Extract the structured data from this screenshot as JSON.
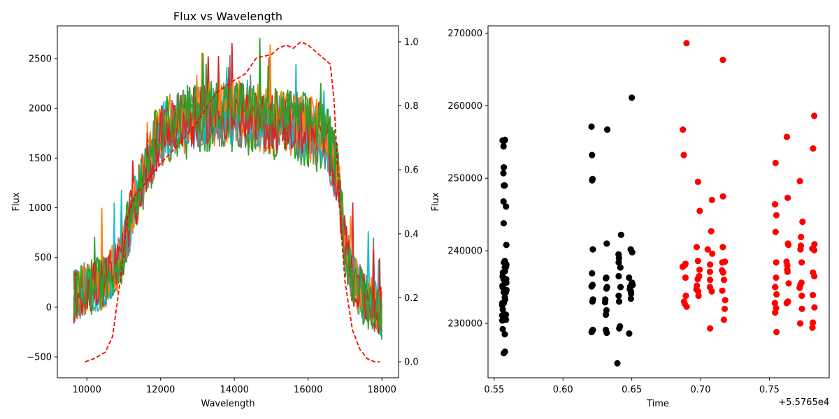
{
  "chart_data": [
    {
      "type": "line",
      "title": "Flux vs Wavelength",
      "xlabel": "Wavelength",
      "ylabel": "Flux",
      "xlim": [
        9200,
        18450
      ],
      "ylim": [
        -710,
        2830
      ],
      "y2lim": [
        -0.05,
        1.05
      ],
      "x_ticks": [
        10000,
        12000,
        14000,
        16000,
        18000
      ],
      "y_ticks": [
        -500,
        0,
        500,
        1000,
        1500,
        2000,
        2500
      ],
      "y2_ticks": [
        0.0,
        0.2,
        0.4,
        0.6,
        0.8,
        1.0
      ],
      "x_tick_labels": [
        "10000",
        "12000",
        "14000",
        "16000",
        "18000"
      ],
      "y_tick_labels": [
        "−500",
        "0",
        "500",
        "1000",
        "1500",
        "2000",
        "2500"
      ],
      "y2_tick_labels": [
        "0.0",
        "0.2",
        "0.4",
        "0.6",
        "0.8",
        "1.0"
      ],
      "grid": false,
      "series_colors": [
        "#17becf",
        "#7f7f7f",
        "#ff7f0e",
        "#d62728",
        "#2ca02c"
      ],
      "spectrum_envelope": {
        "x": [
          9650,
          10000,
          10500,
          10900,
          11200,
          11600,
          12000,
          12500,
          13000,
          13500,
          14000,
          14500,
          15000,
          15500,
          16000,
          16500,
          16800,
          17000,
          17200,
          17500,
          17800,
          18000
        ],
        "y": [
          100,
          200,
          250,
          450,
          900,
          1400,
          1750,
          1850,
          1900,
          1950,
          1950,
          1900,
          1850,
          1850,
          1800,
          1700,
          1300,
          600,
          300,
          100,
          0,
          -50
        ]
      },
      "filter_curve": {
        "name": "",
        "color": "#ff0000",
        "style": "dashed",
        "x": [
          9950,
          10200,
          10500,
          10700,
          10900,
          11100,
          11300,
          11600,
          12000,
          12500,
          13000,
          13500,
          14000,
          14300,
          14600,
          15000,
          15200,
          15400,
          15600,
          15800,
          16000,
          16200,
          16400,
          16600,
          16700,
          16800,
          16900,
          17000,
          17200,
          17400,
          17600,
          17800,
          17950
        ],
        "y": [
          0.0,
          0.01,
          0.03,
          0.08,
          0.25,
          0.45,
          0.52,
          0.56,
          0.62,
          0.68,
          0.75,
          0.84,
          0.88,
          0.9,
          0.95,
          0.96,
          0.98,
          0.99,
          0.98,
          1.0,
          0.99,
          0.97,
          0.95,
          0.93,
          0.82,
          0.6,
          0.4,
          0.25,
          0.1,
          0.04,
          0.01,
          0.0,
          0.0
        ]
      }
    },
    {
      "type": "scatter",
      "title": "",
      "xlabel": "Time",
      "ylabel": "Flux",
      "offset_label": "+5.5765e4",
      "xlim": [
        0.5455,
        0.7935
      ],
      "ylim": [
        222500,
        271000
      ],
      "x_ticks": [
        0.55,
        0.6,
        0.65,
        0.7,
        0.75
      ],
      "y_ticks": [
        230000,
        240000,
        250000,
        260000,
        270000
      ],
      "x_tick_labels": [
        "0.55",
        "0.60",
        "0.65",
        "0.70",
        "0.75"
      ],
      "y_tick_labels": [
        "230000",
        "240000",
        "250000",
        "260000",
        "270000"
      ],
      "grid": false,
      "series": [
        {
          "color": "#000000",
          "points": [
            [
              0.5561,
              255200
            ],
            [
              0.557,
              255100
            ],
            [
              0.5578,
              255300
            ],
            [
              0.5568,
              254400
            ],
            [
              0.557,
              251500
            ],
            [
              0.5567,
              250700
            ],
            [
              0.5571,
              249000
            ],
            [
              0.5576,
              249000
            ],
            [
              0.5568,
              246800
            ],
            [
              0.5586,
              246100
            ],
            [
              0.5569,
              243800
            ],
            [
              0.5588,
              240800
            ],
            [
              0.5571,
              238400
            ],
            [
              0.5577,
              238600
            ],
            [
              0.5579,
              238400
            ],
            [
              0.5577,
              237700
            ],
            [
              0.5578,
              237200
            ],
            [
              0.5586,
              237800
            ],
            [
              0.5588,
              238100
            ],
            [
              0.5563,
              237000
            ],
            [
              0.5561,
              236500
            ],
            [
              0.5568,
              236100
            ],
            [
              0.5576,
              235900
            ],
            [
              0.5587,
              236100
            ],
            [
              0.5588,
              235600
            ],
            [
              0.556,
              235200
            ],
            [
              0.5561,
              235000
            ],
            [
              0.5589,
              234600
            ],
            [
              0.557,
              234300
            ],
            [
              0.5585,
              234300
            ],
            [
              0.5577,
              233600
            ],
            [
              0.558,
              233300
            ],
            [
              0.5559,
              232800
            ],
            [
              0.5558,
              232500
            ],
            [
              0.557,
              232800
            ],
            [
              0.5562,
              231900
            ],
            [
              0.5558,
              231100
            ],
            [
              0.5585,
              231200
            ],
            [
              0.5559,
              230400
            ],
            [
              0.5561,
              230400
            ],
            [
              0.5586,
              230500
            ],
            [
              0.5562,
              229200
            ],
            [
              0.5577,
              228500
            ],
            [
              0.557,
              225900
            ],
            [
              0.5578,
              226100
            ],
            [
              0.6207,
              257100
            ],
            [
              0.6211,
              253200
            ],
            [
              0.6212,
              249700
            ],
            [
              0.6215,
              249900
            ],
            [
              0.6217,
              240200
            ],
            [
              0.6211,
              236900
            ],
            [
              0.6208,
              235100
            ],
            [
              0.6215,
              235300
            ],
            [
              0.6218,
              233300
            ],
            [
              0.6214,
              233000
            ],
            [
              0.6208,
              228800
            ],
            [
              0.6213,
              229000
            ],
            [
              0.6217,
              229100
            ],
            [
              0.6322,
              256700
            ],
            [
              0.6318,
              241000
            ],
            [
              0.6312,
              236200
            ],
            [
              0.6315,
              236300
            ],
            [
              0.6316,
              234800
            ],
            [
              0.632,
              235000
            ],
            [
              0.6307,
              233300
            ],
            [
              0.6306,
              232900
            ],
            [
              0.6316,
              231800
            ],
            [
              0.6312,
              231200
            ],
            [
              0.6312,
              229100
            ],
            [
              0.6318,
              228700
            ],
            [
              0.6422,
              242200
            ],
            [
              0.6404,
              239500
            ],
            [
              0.6407,
              239000
            ],
            [
              0.6405,
              238400
            ],
            [
              0.6417,
              237700
            ],
            [
              0.6405,
              236500
            ],
            [
              0.6418,
              235000
            ],
            [
              0.6405,
              233800
            ],
            [
              0.6408,
              233000
            ],
            [
              0.6414,
              229600
            ],
            [
              0.6409,
              229300
            ],
            [
              0.6395,
              224500
            ],
            [
              0.65,
              261100
            ],
            [
              0.6492,
              240200
            ],
            [
              0.6503,
              239800
            ],
            [
              0.648,
              236300
            ],
            [
              0.6502,
              235600
            ],
            [
              0.6506,
              235300
            ],
            [
              0.6489,
              235100
            ],
            [
              0.6486,
              234700
            ],
            [
              0.6494,
              234400
            ],
            [
              0.6495,
              234100
            ],
            [
              0.6493,
              233400
            ],
            [
              0.6481,
              228600
            ]
          ]
        },
        {
          "color": "#ff0000",
          "points": [
            [
              0.6898,
              268600
            ],
            [
              0.6872,
              256700
            ],
            [
              0.6878,
              253200
            ],
            [
              0.689,
              238200
            ],
            [
              0.6884,
              238000
            ],
            [
              0.687,
              237800
            ],
            [
              0.689,
              236300
            ],
            [
              0.6893,
              233800
            ],
            [
              0.688,
              233000
            ],
            [
              0.6885,
              232700
            ],
            [
              0.6899,
              232300
            ],
            [
              0.6981,
              249500
            ],
            [
              0.6994,
              245500
            ],
            [
              0.6972,
              240500
            ],
            [
              0.6981,
              238600
            ],
            [
              0.6993,
              237400
            ],
            [
              0.6989,
              236500
            ],
            [
              0.6979,
              236100
            ],
            [
              0.6973,
              235200
            ],
            [
              0.697,
              234700
            ],
            [
              0.6982,
              234400
            ],
            [
              0.6985,
              233800
            ],
            [
              0.7083,
              247000
            ],
            [
              0.7077,
              242700
            ],
            [
              0.7052,
              240200
            ],
            [
              0.7085,
              239600
            ],
            [
              0.7069,
              238100
            ],
            [
              0.7068,
              237100
            ],
            [
              0.7069,
              236000
            ],
            [
              0.7068,
              235000
            ],
            [
              0.7081,
              234400
            ],
            [
              0.7069,
              229300
            ],
            [
              0.7162,
              266300
            ],
            [
              0.7163,
              247500
            ],
            [
              0.7162,
              240500
            ],
            [
              0.7158,
              238400
            ],
            [
              0.7177,
              238500
            ],
            [
              0.7156,
              237300
            ],
            [
              0.7164,
              237000
            ],
            [
              0.717,
              236000
            ],
            [
              0.7158,
              234500
            ],
            [
              0.7179,
              233200
            ],
            [
              0.7175,
              232000
            ],
            [
              0.7169,
              230500
            ],
            [
              0.7545,
              252100
            ],
            [
              0.7541,
              246400
            ],
            [
              0.7551,
              244900
            ],
            [
              0.7545,
              242600
            ],
            [
              0.755,
              238400
            ],
            [
              0.7549,
              236300
            ],
            [
              0.7542,
              235000
            ],
            [
              0.7552,
              234000
            ],
            [
              0.754,
              232800
            ],
            [
              0.7549,
              232100
            ],
            [
              0.7542,
              231500
            ],
            [
              0.7552,
              228800
            ],
            [
              0.7627,
              255700
            ],
            [
              0.7633,
              247300
            ],
            [
              0.7635,
              241000
            ],
            [
              0.7638,
              240800
            ],
            [
              0.7625,
              238500
            ],
            [
              0.763,
              238000
            ],
            [
              0.763,
              237400
            ],
            [
              0.7632,
              237100
            ],
            [
              0.764,
              235500
            ],
            [
              0.7635,
              233000
            ],
            [
              0.7626,
              232800
            ],
            [
              0.7722,
              249600
            ],
            [
              0.7741,
              244000
            ],
            [
              0.773,
              241900
            ],
            [
              0.7729,
              240700
            ],
            [
              0.7726,
              240200
            ],
            [
              0.7735,
              238400
            ],
            [
              0.7733,
              235600
            ],
            [
              0.7725,
              235300
            ],
            [
              0.772,
              234900
            ],
            [
              0.7736,
              233800
            ],
            [
              0.7737,
              232000
            ],
            [
              0.7724,
              230000
            ],
            [
              0.7826,
              258600
            ],
            [
              0.7818,
              254100
            ],
            [
              0.7828,
              240900
            ],
            [
              0.7812,
              240300
            ],
            [
              0.7826,
              240100
            ],
            [
              0.7817,
              237000
            ],
            [
              0.7827,
              236500
            ],
            [
              0.7816,
              233900
            ],
            [
              0.7828,
              232200
            ],
            [
              0.7816,
              230100
            ],
            [
              0.7813,
              229400
            ]
          ]
        }
      ]
    }
  ]
}
